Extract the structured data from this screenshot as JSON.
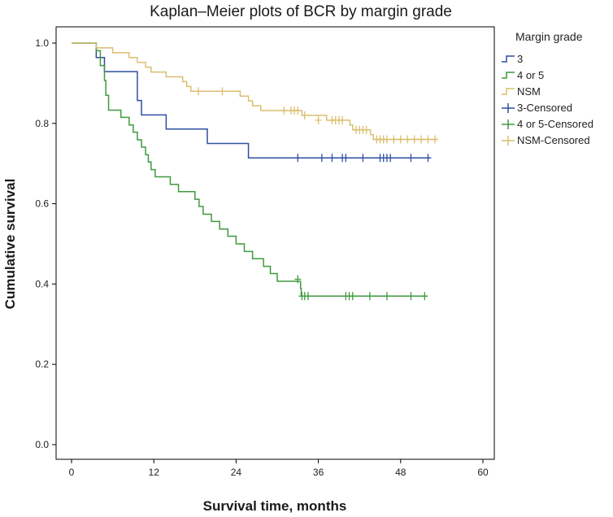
{
  "chart_data": {
    "type": "line",
    "title": "Kaplan–Meier plots of BCR by margin grade",
    "xlabel": "Survival time, months",
    "ylabel": "Cumulative survival",
    "xlim": [
      0,
      60
    ],
    "ylim": [
      0,
      1
    ],
    "x_ticks": [
      "0",
      "12",
      "24",
      "36",
      "48",
      "60"
    ],
    "y_ticks": [
      "0.0",
      "0.2",
      "0.4",
      "0.6",
      "0.8",
      "1.0"
    ],
    "grid": false,
    "legend": {
      "title": "Margin grade",
      "placement": "right",
      "entries": [
        "3",
        "4 or 5",
        "NSM",
        "3-Censored",
        "4 or 5-Censored",
        "NSM-Censored"
      ]
    },
    "colors": {
      "3": "#2d4fa0",
      "4 or 5": "#3f9a3f",
      "NSM": "#d9bf6e"
    },
    "series": [
      {
        "name": "3",
        "steps": [
          [
            0,
            1.0
          ],
          [
            3.6,
            0.964
          ],
          [
            4.8,
            0.929
          ],
          [
            9.6,
            0.857
          ],
          [
            10.2,
            0.821
          ],
          [
            13.8,
            0.786
          ],
          [
            19.8,
            0.75
          ],
          [
            25.8,
            0.714
          ],
          [
            52.3,
            0.714
          ]
        ],
        "censored": [
          [
            33,
            0.714
          ],
          [
            36.5,
            0.714
          ],
          [
            38,
            0.714
          ],
          [
            39.5,
            0.714
          ],
          [
            40,
            0.714
          ],
          [
            42.5,
            0.714
          ],
          [
            45,
            0.714
          ],
          [
            45.5,
            0.714
          ],
          [
            46,
            0.714
          ],
          [
            46.5,
            0.714
          ],
          [
            49.5,
            0.714
          ],
          [
            52,
            0.714
          ]
        ]
      },
      {
        "name": "4 or 5",
        "steps": [
          [
            0,
            1.0
          ],
          [
            3.6,
            0.981
          ],
          [
            4.2,
            0.944
          ],
          [
            4.8,
            0.907
          ],
          [
            5.0,
            0.87
          ],
          [
            5.4,
            0.833
          ],
          [
            7.2,
            0.815
          ],
          [
            8.4,
            0.796
          ],
          [
            9.0,
            0.778
          ],
          [
            9.6,
            0.759
          ],
          [
            10.2,
            0.741
          ],
          [
            10.8,
            0.722
          ],
          [
            11.2,
            0.704
          ],
          [
            11.6,
            0.685
          ],
          [
            12.2,
            0.667
          ],
          [
            14.4,
            0.648
          ],
          [
            15.6,
            0.63
          ],
          [
            18.0,
            0.611
          ],
          [
            18.6,
            0.593
          ],
          [
            19.2,
            0.574
          ],
          [
            20.4,
            0.556
          ],
          [
            21.6,
            0.537
          ],
          [
            22.8,
            0.519
          ],
          [
            24.0,
            0.5
          ],
          [
            25.2,
            0.481
          ],
          [
            26.4,
            0.463
          ],
          [
            28.0,
            0.444
          ],
          [
            29.0,
            0.426
          ],
          [
            30.0,
            0.407
          ],
          [
            33.4,
            0.389
          ],
          [
            33.5,
            0.37
          ],
          [
            51.9,
            0.37
          ]
        ],
        "censored": [
          [
            33,
            0.412
          ],
          [
            33.6,
            0.37
          ],
          [
            34,
            0.37
          ],
          [
            34.5,
            0.37
          ],
          [
            40,
            0.37
          ],
          [
            40.5,
            0.37
          ],
          [
            41,
            0.37
          ],
          [
            43.5,
            0.37
          ],
          [
            46,
            0.37
          ],
          [
            49.5,
            0.37
          ],
          [
            51.5,
            0.37
          ]
        ]
      },
      {
        "name": "NSM",
        "steps": [
          [
            0,
            1.0
          ],
          [
            3.6,
            0.988
          ],
          [
            6.0,
            0.976
          ],
          [
            8.4,
            0.964
          ],
          [
            9.6,
            0.952
          ],
          [
            10.8,
            0.94
          ],
          [
            11.6,
            0.928
          ],
          [
            13.8,
            0.916
          ],
          [
            16.2,
            0.904
          ],
          [
            16.8,
            0.892
          ],
          [
            17.4,
            0.88
          ],
          [
            24.6,
            0.868
          ],
          [
            25.8,
            0.856
          ],
          [
            26.4,
            0.844
          ],
          [
            27.6,
            0.832
          ],
          [
            33.6,
            0.82
          ],
          [
            37.2,
            0.808
          ],
          [
            40.6,
            0.796
          ],
          [
            41.0,
            0.784
          ],
          [
            43.6,
            0.772
          ],
          [
            44.0,
            0.76
          ],
          [
            53.3,
            0.76
          ]
        ],
        "censored": [
          [
            18.5,
            0.88
          ],
          [
            22,
            0.88
          ],
          [
            31,
            0.832
          ],
          [
            32,
            0.832
          ],
          [
            32.5,
            0.832
          ],
          [
            33,
            0.832
          ],
          [
            34,
            0.82
          ],
          [
            36,
            0.808
          ],
          [
            38,
            0.808
          ],
          [
            38.5,
            0.808
          ],
          [
            39,
            0.808
          ],
          [
            39.5,
            0.808
          ],
          [
            41.5,
            0.784
          ],
          [
            42,
            0.784
          ],
          [
            42.5,
            0.784
          ],
          [
            43,
            0.784
          ],
          [
            44.5,
            0.76
          ],
          [
            45,
            0.76
          ],
          [
            45.5,
            0.76
          ],
          [
            46,
            0.76
          ],
          [
            47,
            0.76
          ],
          [
            48,
            0.76
          ],
          [
            49,
            0.76
          ],
          [
            50,
            0.76
          ],
          [
            51,
            0.76
          ],
          [
            52,
            0.76
          ],
          [
            53,
            0.76
          ]
        ]
      }
    ]
  }
}
